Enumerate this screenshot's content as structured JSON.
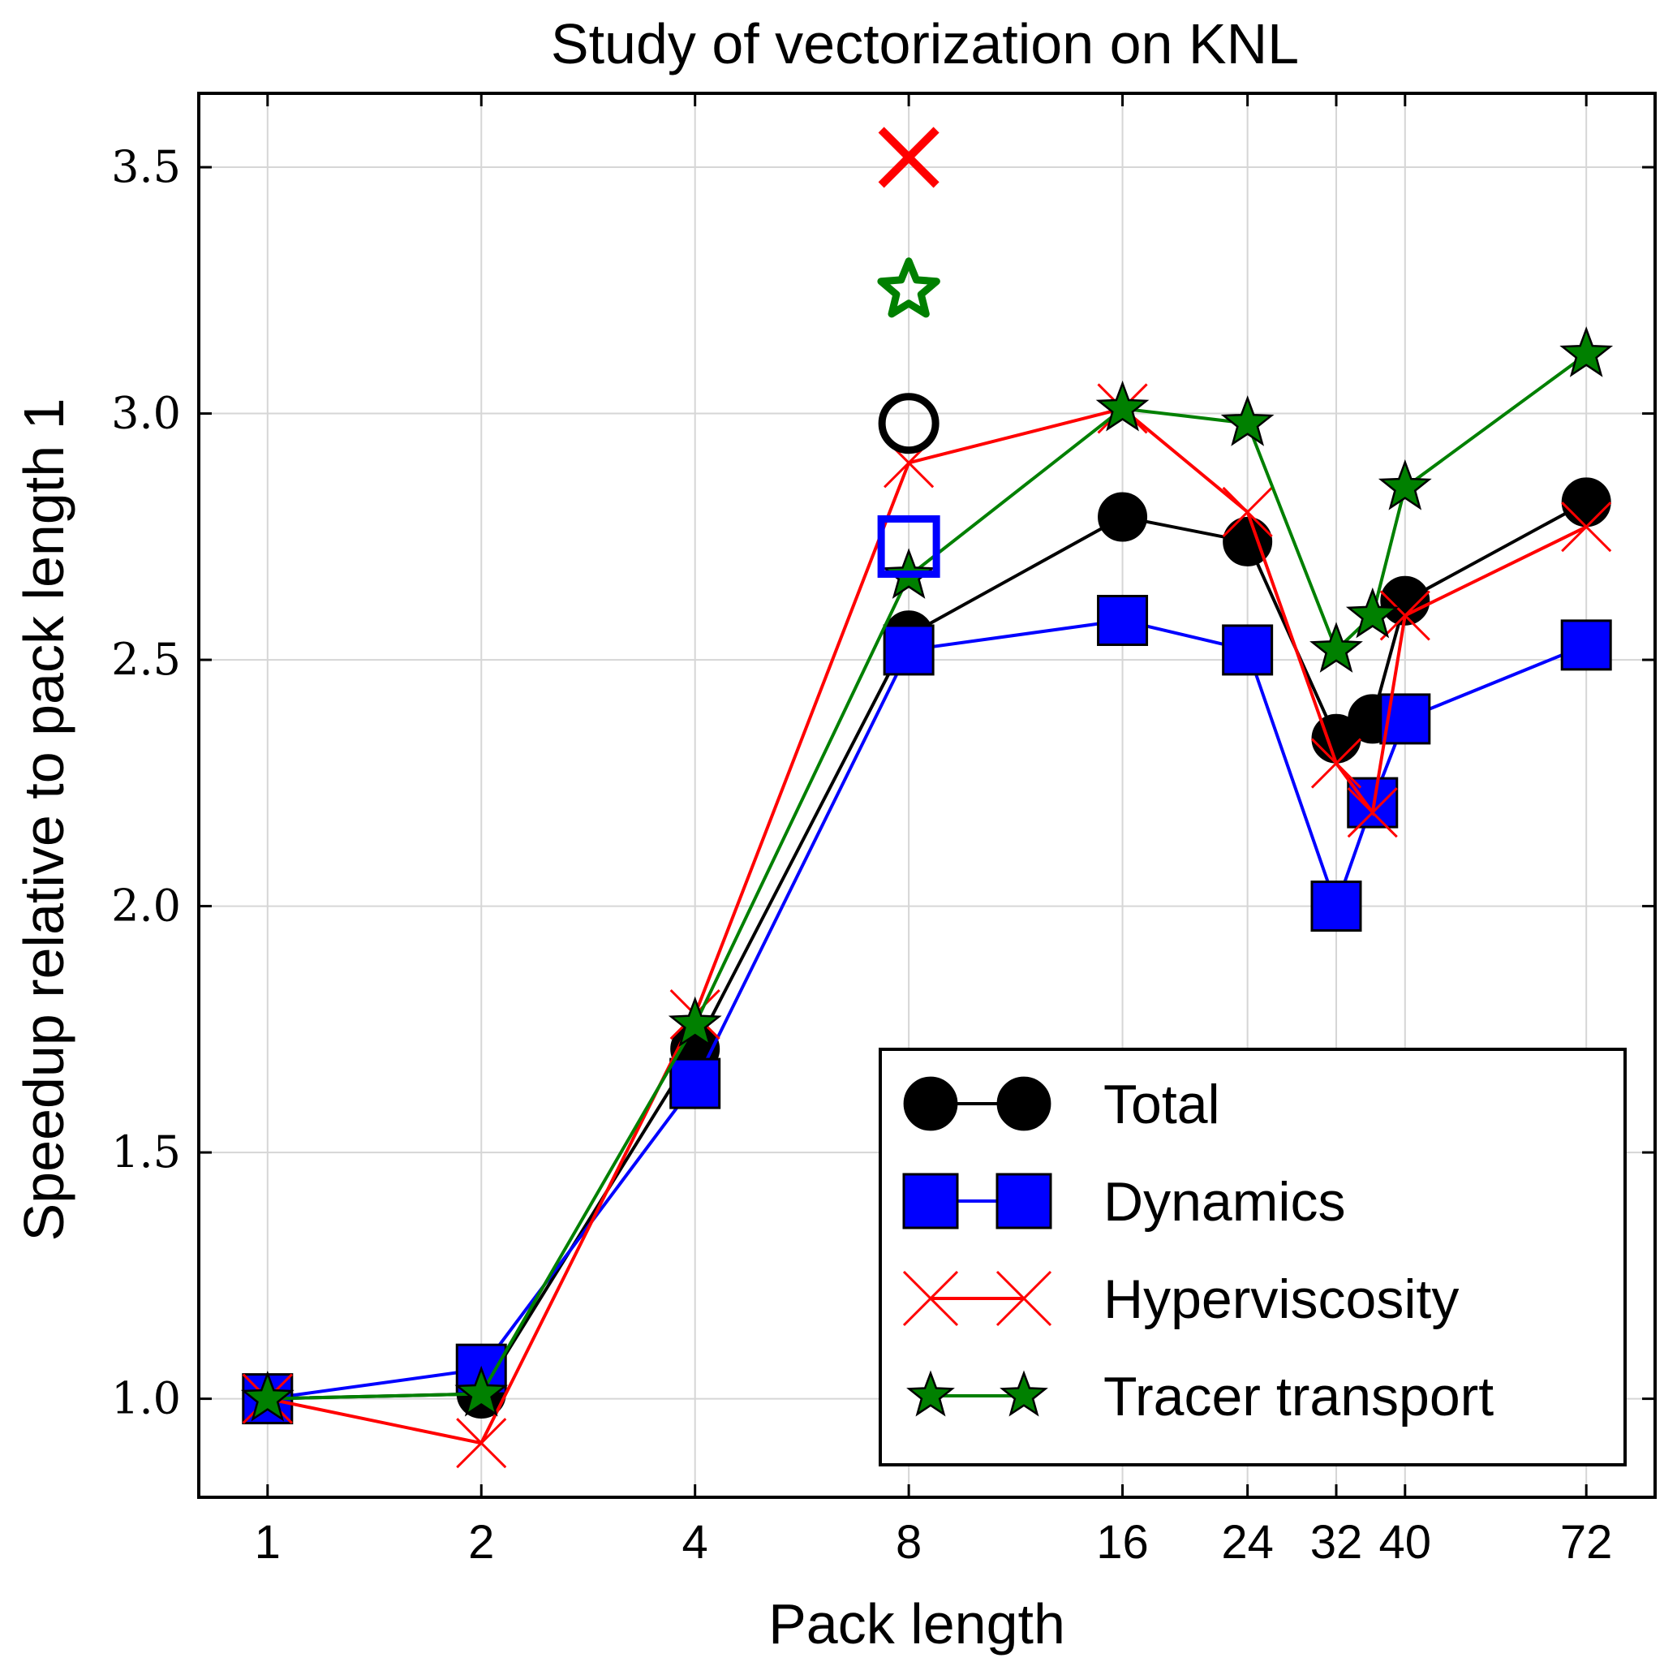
{
  "chart_data": {
    "type": "line",
    "title": "Study of vectorization on KNL",
    "xlabel": "Pack length",
    "ylabel": "Speedup relative to pack length 1",
    "x_tick_labels": [
      "1",
      "2",
      "4",
      "8",
      "16",
      "24",
      "32",
      "40",
      "72"
    ],
    "x_scale": "log2",
    "xlim": [
      0.8,
      90
    ],
    "ylim": [
      0.8,
      3.65
    ],
    "y_ticks": [
      1.0,
      1.5,
      2.0,
      2.5,
      3.0,
      3.5
    ],
    "y_tick_labels": [
      "1.0",
      "1.5",
      "2.0",
      "2.5",
      "3.0",
      "3.5"
    ],
    "grid": true,
    "legend_position": "lower-right",
    "x": [
      1,
      2,
      4,
      8,
      16,
      24,
      32,
      36,
      40,
      72
    ],
    "series": [
      {
        "name": "Total",
        "marker": "circle",
        "color": "#000000",
        "values": [
          1.0,
          1.01,
          1.71,
          2.55,
          2.79,
          2.74,
          2.34,
          2.38,
          2.62,
          2.82
        ]
      },
      {
        "name": "Dynamics",
        "marker": "square",
        "color": "#0000ff",
        "values": [
          1.0,
          1.06,
          1.64,
          2.52,
          2.58,
          2.52,
          2.0,
          2.21,
          2.38,
          2.53
        ]
      },
      {
        "name": "Hyperviscosity",
        "marker": "x",
        "color": "#ff0000",
        "values": [
          1.0,
          0.91,
          1.78,
          2.9,
          3.01,
          2.8,
          2.29,
          2.19,
          2.59,
          2.77
        ]
      },
      {
        "name": "Tracer transport",
        "marker": "star",
        "color": "#008000",
        "values": [
          1.0,
          1.01,
          1.76,
          2.67,
          3.01,
          2.98,
          2.52,
          2.59,
          2.85,
          3.12
        ]
      }
    ],
    "open_markers_at_8": [
      {
        "series": "Hyperviscosity",
        "marker": "x",
        "color": "#ff0000",
        "x": 8,
        "y": 3.52
      },
      {
        "series": "Tracer transport",
        "marker": "open-star",
        "color": "#008000",
        "x": 8,
        "y": 3.25
      },
      {
        "series": "Total",
        "marker": "open-circle",
        "color": "#000000",
        "x": 8,
        "y": 2.98
      },
      {
        "series": "Dynamics",
        "marker": "open-square",
        "color": "#0000ff",
        "x": 8,
        "y": 2.73
      }
    ]
  }
}
